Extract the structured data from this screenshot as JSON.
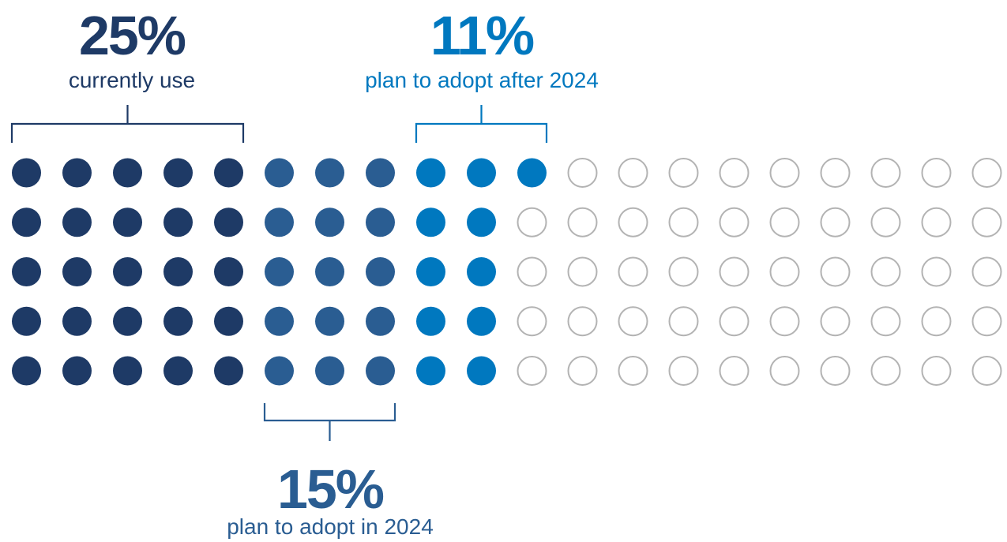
{
  "chart_data": {
    "type": "waffle",
    "total_dots": 100,
    "grid": {
      "rows": 5,
      "columns": 20
    },
    "fill_order": "column-wise, top to bottom",
    "series": [
      {
        "name": "currently use",
        "percent": 25,
        "value_label": "25%",
        "color": "#1e3a66"
      },
      {
        "name": "plan to adopt in 2024",
        "percent": 15,
        "value_label": "15%",
        "color": "#2a5d92"
      },
      {
        "name": "plan to adopt after 2024",
        "percent": 11,
        "value_label": "11%",
        "color": "#0078bf"
      }
    ],
    "remainder": {
      "percent": 49,
      "color": "#b3b3b3",
      "style": "outline"
    }
  }
}
